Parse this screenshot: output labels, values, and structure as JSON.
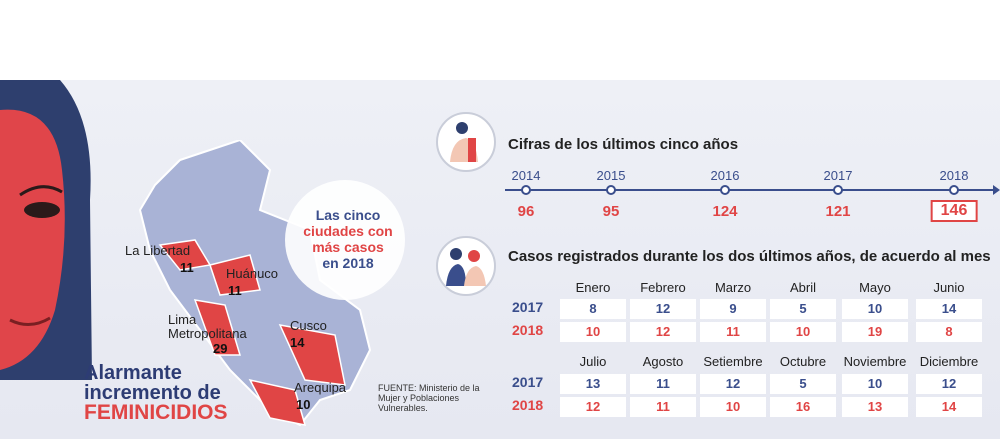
{
  "headline": {
    "line1": "Alarmante",
    "line2": "incremento de",
    "line3": "FEMINICIDIOS"
  },
  "callout": {
    "line1": "Las cinco",
    "line2": "ciudades con",
    "line3": "más casos",
    "line4": "en 2018"
  },
  "cities": [
    {
      "name": "La Libertad",
      "value": "11"
    },
    {
      "name": "Huánuco",
      "value": "11"
    },
    {
      "name": "Lima Metropolitana",
      "value": "29"
    },
    {
      "name": "Cusco",
      "value": "14"
    },
    {
      "name": "Arequipa",
      "value": "10"
    }
  ],
  "source": "FUENTE: Ministerio de la Mujer y Poblaciones Vulnerables.",
  "section1": {
    "title": "Cifras de los últimos cinco años"
  },
  "section2": {
    "title": "Casos registrados durante los dos últimos años, de acuerdo al mes"
  },
  "row_labels": {
    "y2017": "2017",
    "y2018": "2018"
  },
  "chart_data": [
    {
      "type": "line",
      "title": "Cifras de los últimos cinco años",
      "x": [
        "2014",
        "2015",
        "2016",
        "2017",
        "2018"
      ],
      "values": [
        96,
        95,
        124,
        121,
        146
      ]
    },
    {
      "type": "table",
      "title": "Casos registrados durante los dos últimos años, de acuerdo al mes",
      "months": [
        "Enero",
        "Febrero",
        "Marzo",
        "Abril",
        "Mayo",
        "Junio",
        "Julio",
        "Agosto",
        "Setiembre",
        "Octubre",
        "Noviembre",
        "Diciembre"
      ],
      "series": [
        {
          "name": "2017",
          "values": [
            8,
            12,
            9,
            5,
            10,
            14,
            13,
            11,
            12,
            5,
            10,
            12
          ]
        },
        {
          "name": "2018",
          "values": [
            10,
            12,
            11,
            10,
            19,
            8,
            12,
            11,
            10,
            16,
            13,
            14
          ]
        }
      ]
    },
    {
      "type": "table",
      "title": "Las cinco ciudades con más casos en 2018",
      "categories": [
        "La Libertad",
        "Huánuco",
        "Lima Metropolitana",
        "Cusco",
        "Arequipa"
      ],
      "values": [
        11,
        11,
        29,
        14,
        10
      ]
    }
  ],
  "colors": {
    "blue": "#3a4e8c",
    "red": "#e04545",
    "map": "#a9b3d6"
  }
}
